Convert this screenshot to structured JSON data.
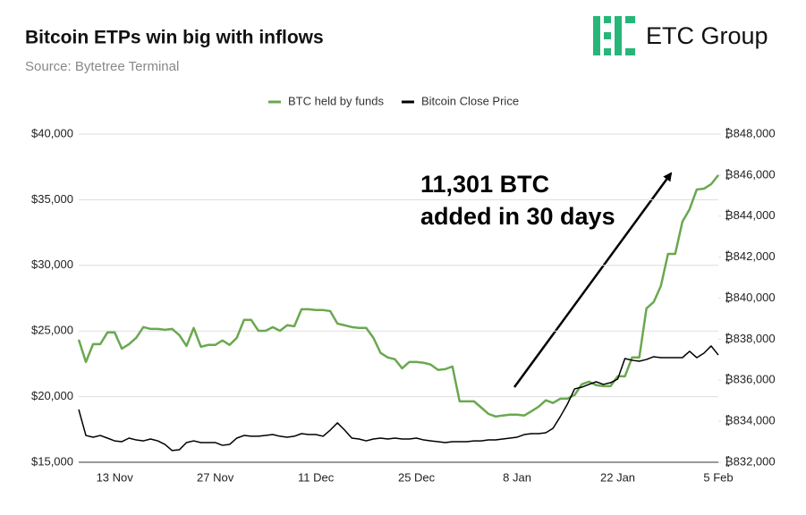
{
  "chart_data": {
    "type": "line",
    "title": "Bitcoin ETPs win big with inflows",
    "subtitle": "Source: Bytetree Terminal",
    "logo": "ETC Group",
    "annotation": [
      "11,301 BTC",
      "added in 30 days"
    ],
    "legend": "top",
    "grid": true,
    "categories": [
      null,
      null,
      null,
      null,
      null,
      "13 Nov",
      null,
      null,
      null,
      null,
      null,
      null,
      null,
      null,
      null,
      null,
      null,
      null,
      null,
      "27 Nov",
      null,
      null,
      null,
      null,
      null,
      null,
      null,
      null,
      null,
      null,
      null,
      null,
      null,
      "11 Dec",
      null,
      null,
      null,
      null,
      null,
      null,
      null,
      null,
      null,
      null,
      null,
      null,
      null,
      "25 Dec",
      null,
      null,
      null,
      null,
      null,
      null,
      null,
      null,
      null,
      null,
      null,
      null,
      null,
      "8 Jan",
      null,
      null,
      null,
      null,
      null,
      null,
      null,
      null,
      null,
      null,
      null,
      null,
      null,
      "22 Jan",
      null,
      null,
      null,
      null,
      null,
      null,
      null,
      null,
      null,
      null,
      null,
      null,
      null,
      "5 Feb"
    ],
    "series": [
      {
        "name": "BTC held by funds",
        "color": "#6aa84f",
        "axis": "y2",
        "values": [
          837980,
          836890,
          837760,
          837760,
          838330,
          838330,
          837540,
          837760,
          838070,
          838590,
          838500,
          838500,
          838460,
          838500,
          838200,
          837670,
          838550,
          837630,
          837720,
          837720,
          837940,
          837720,
          838070,
          838940,
          838940,
          838410,
          838410,
          838590,
          838410,
          838680,
          838630,
          839460,
          839460,
          839420,
          839420,
          839370,
          838760,
          838680,
          838590,
          838550,
          838550,
          838070,
          837330,
          837110,
          837020,
          836580,
          836890,
          836890,
          836850,
          836760,
          836500,
          836540,
          836670,
          834970,
          834970,
          834970,
          834670,
          834360,
          834230,
          834280,
          834320,
          834320,
          834280,
          834490,
          834710,
          835020,
          834890,
          835100,
          835100,
          835280,
          835800,
          835930,
          835760,
          835710,
          835710,
          836190,
          836190,
          837110,
          837110,
          839500,
          839810,
          840590,
          842160,
          842160,
          843730,
          844340,
          845300,
          845340,
          845560,
          846000
        ]
      },
      {
        "name": "Bitcoin Close Price",
        "color": "#000000",
        "values": [
          19020,
          17040,
          16910,
          17040,
          16840,
          16630,
          16570,
          16840,
          16700,
          16630,
          16770,
          16630,
          16360,
          15890,
          15950,
          16500,
          16630,
          16500,
          16500,
          16500,
          16290,
          16360,
          16840,
          17040,
          16980,
          16980,
          17040,
          17110,
          16980,
          16910,
          16980,
          17180,
          17110,
          17110,
          16980,
          17450,
          18000,
          17450,
          16840,
          16770,
          16630,
          16770,
          16840,
          16770,
          16840,
          16770,
          16770,
          16840,
          16700,
          16630,
          16570,
          16500,
          16570,
          16570,
          16570,
          16630,
          16630,
          16700,
          16700,
          16770,
          16840,
          16910,
          17110,
          17180,
          17180,
          17250,
          17590,
          18470,
          19430,
          20590,
          20720,
          20930,
          21130,
          20930,
          21060,
          21340,
          22900,
          22770,
          22700,
          22830,
          23040,
          22970,
          22970,
          22970,
          22970,
          23450,
          22970,
          23310,
          23860,
          23170
        ]
      }
    ],
    "ylim": [
      15000,
      40000
    ],
    "yticks": [
      {
        "value": 15000,
        "label": "$15,000"
      },
      {
        "value": 20000,
        "label": "$20,000"
      },
      {
        "value": 25000,
        "label": "$25,000"
      },
      {
        "value": 30000,
        "label": "$30,000"
      },
      {
        "value": 35000,
        "label": "$35,000"
      },
      {
        "value": 40000,
        "label": "$40,000"
      }
    ],
    "y2lim": [
      832000,
      848000
    ],
    "y2ticks": [
      {
        "value": 832000,
        "label": "₿832,000"
      },
      {
        "value": 834000,
        "label": "₿834,000"
      },
      {
        "value": 836000,
        "label": "₿836,000"
      },
      {
        "value": 838000,
        "label": "₿838,000"
      },
      {
        "value": 840000,
        "label": "₿840,000"
      },
      {
        "value": 842000,
        "label": "₿842,000"
      },
      {
        "value": 844000,
        "label": "₿844,000"
      },
      {
        "value": 846000,
        "label": "₿846,000"
      },
      {
        "value": 848000,
        "label": "₿848,000"
      }
    ]
  }
}
